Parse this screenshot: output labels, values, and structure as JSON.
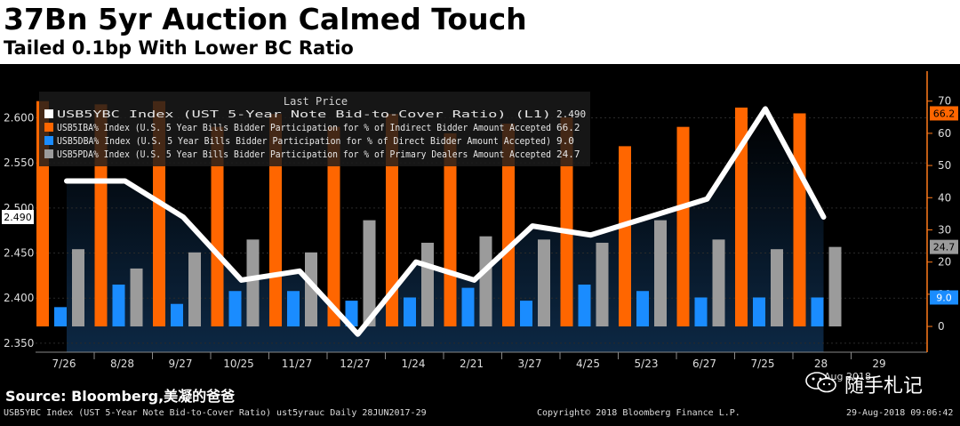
{
  "header": {
    "title": "37Bn 5yr Auction Calmed Touch",
    "subtitle": "Tailed 0.1bp With Lower BC Ratio"
  },
  "source_label": "Source: Bloomberg,美凝的爸爸",
  "brand": {
    "text": "随手札记",
    "icon": "wechat-icon"
  },
  "footer": {
    "left": "USB5YBC Index (UST 5-Year Note Bid-to-Cover Ratio) ust5yrauc  Daily 28JUN2017-29",
    "center": "Copyright© 2018 Bloomberg Finance L.P.",
    "right": "29-Aug-2018 09:06:42"
  },
  "colors": {
    "line": "#ffffff",
    "indirect": "#ff6600",
    "direct": "#1a8cff",
    "dealers": "#9b9b9b",
    "axis_right": "#ff7a1a"
  },
  "chart_data": {
    "type": "bar",
    "categories": [
      "7/26",
      "8/28",
      "9/27",
      "10/25",
      "11/27",
      "12/27",
      "1/24",
      "2/21",
      "3/27",
      "4/25",
      "5/23",
      "6/27",
      "7/25",
      "28"
    ],
    "extra_tick": "29",
    "last_tick_sublabel": "Aug 2018",
    "legend_title": "Last Price",
    "legend": [
      {
        "key": "line",
        "text": "USB5YBC Index (UST 5-Year Note Bid-to-Cover Ratio)  (L1)",
        "value": "2.490"
      },
      {
        "key": "indirect",
        "text": "USB5IBA% Index (U.S. 5 Year Bills Bidder Participation for % of Indirect Bidder Amount Accepted",
        "value": "66.2"
      },
      {
        "key": "direct",
        "text": "USB5DBA% Index (U.S. 5 Year Bills Bidder Participation for % of Direct Bidder Amount Accepted)",
        "value": "9.0"
      },
      {
        "key": "dealers",
        "text": "USB5PDA% Index (U.S. 5 Year Bills Bidder Participation for % of Primary Dealers Amount Accepted",
        "value": "24.7"
      }
    ],
    "bid_to_cover": [
      2.53,
      2.53,
      2.49,
      2.42,
      2.43,
      2.36,
      2.44,
      2.42,
      2.48,
      2.47,
      2.49,
      2.51,
      2.61,
      2.49
    ],
    "series": [
      {
        "name": "Indirect",
        "values": [
          70,
          69,
          70,
          62,
          66,
          62,
          66,
          60,
          63,
          65,
          56,
          62,
          68,
          66.2
        ]
      },
      {
        "name": "Direct",
        "values": [
          6,
          13,
          7,
          11,
          11,
          8,
          9,
          12,
          8,
          13,
          11,
          9,
          9,
          9.0
        ]
      },
      {
        "name": "Primary Dealers",
        "values": [
          24,
          18,
          23,
          27,
          23,
          33,
          26,
          28,
          27,
          26,
          33,
          27,
          24,
          24.7
        ]
      }
    ],
    "ylim_left": [
      2.34,
      2.64
    ],
    "yticks_left": [
      "2.350",
      "2.400",
      "2.450",
      "2.500",
      "2.550",
      "2.600"
    ],
    "ylim_right": [
      -8,
      76
    ],
    "yticks_right": [
      "0",
      "10",
      "20",
      "30",
      "40",
      "50",
      "60",
      "70"
    ],
    "last_badges": {
      "left": "2.490",
      "right_indirect": "66.2",
      "right_dealers": "24.7",
      "right_direct": "9.0"
    }
  }
}
